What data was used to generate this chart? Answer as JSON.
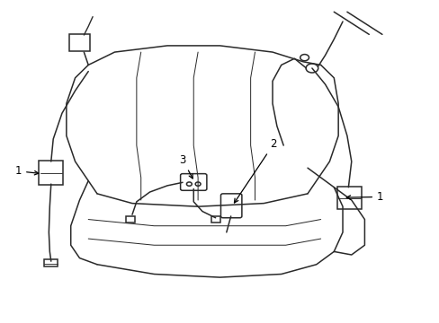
{
  "background_color": "#ffffff",
  "line_color": "#2a2a2a",
  "line_width": 1.1,
  "callout_color": "#000000",
  "callout_fontsize": 8.5,
  "figsize": [
    4.89,
    3.6
  ],
  "dpi": 100
}
